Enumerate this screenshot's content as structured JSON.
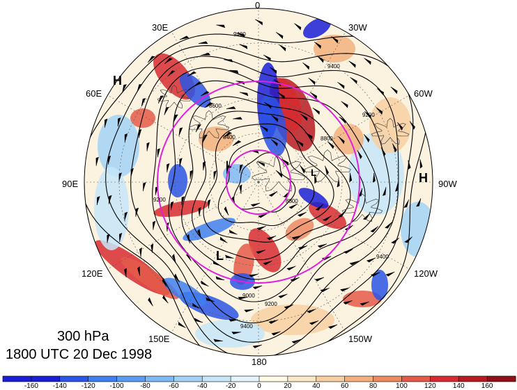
{
  "caption": {
    "level": "300 hPa",
    "time": "1800 UTC 20 Dec 1998"
  },
  "longitude_labels": [
    "0",
    "30W",
    "60W",
    "90W",
    "120W",
    "150W",
    "180",
    "150E",
    "120E",
    "90E",
    "60E",
    "30E"
  ],
  "pressure_centers": [
    {
      "type": "H",
      "label": "H"
    },
    {
      "type": "H",
      "label": "H"
    },
    {
      "type": "L",
      "label": "L"
    },
    {
      "type": "L",
      "label": "L"
    },
    {
      "type": "L",
      "label": "L"
    }
  ],
  "contour_labels": [
    "9400",
    "9200",
    "9000",
    "8800",
    "8600",
    "8400"
  ],
  "colorbar": {
    "ticks": [
      "-160",
      "-140",
      "-120",
      "-100",
      "-80",
      "-60",
      "-40",
      "-20",
      "0",
      "20",
      "40",
      "60",
      "80",
      "100",
      "120",
      "140",
      "160"
    ],
    "colors": [
      "#1a1fd6",
      "#2a55e6",
      "#3f7ff0",
      "#5b9cf2",
      "#7fb9f4",
      "#a3d2f6",
      "#c6e6f8",
      "#e4f4fb",
      "#fffbe6",
      "#fbe8c6",
      "#f7cfa0",
      "#f2b07e",
      "#ec8a62",
      "#e45a48",
      "#d82a30",
      "#b81a22",
      "#901018"
    ]
  },
  "colors": {
    "ring": "#e020e0",
    "contour": "#000000"
  }
}
